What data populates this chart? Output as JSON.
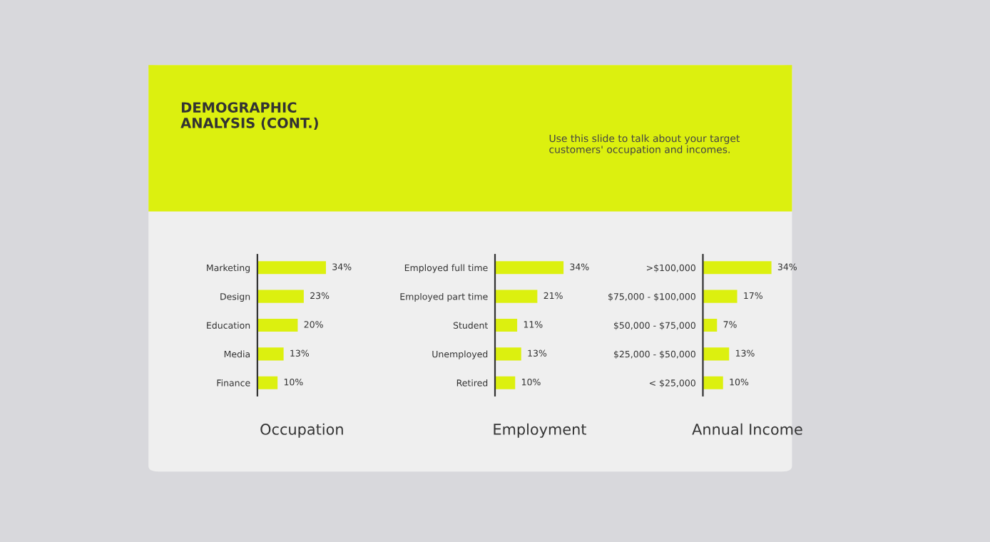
{
  "chart_data": [
    {
      "type": "other",
      "title": "DEMOGRAPHIC\nANALYSIS (CONT.)",
      "subtitle": "Use this slide to talk about your target\ncustomers' occupation and incomes."
    },
    {
      "type": "bar",
      "orientation": "horizontal",
      "xlabel": "Occupation",
      "color": "#dcf00f",
      "categories": [
        "Marketing",
        "Design",
        "Education",
        "Media",
        "Finance"
      ],
      "values": [
        34,
        23,
        20,
        13,
        10
      ],
      "value_labels": [
        "34%",
        "23%",
        "20%",
        "13%",
        "10%"
      ]
    },
    {
      "type": "bar",
      "orientation": "horizontal",
      "xlabel": "Employment",
      "color": "#dcf00f",
      "categories": [
        "Employed full time",
        "Employed part time",
        "Student",
        "Unemployed",
        "Retired"
      ],
      "values": [
        34,
        21,
        11,
        13,
        10
      ],
      "value_labels": [
        "34%",
        "21%",
        "11%",
        "13%",
        "10%"
      ]
    },
    {
      "type": "bar",
      "orientation": "horizontal",
      "xlabel": "Annual Income",
      "color": "#dcf00f",
      "categories": [
        ">$100,000",
        "$75,000 - $100,000",
        "$50,000 - $75,000",
        "$25,000 - $50,000",
        "< $25,000"
      ],
      "values": [
        34,
        17,
        7,
        13,
        10
      ],
      "value_labels": [
        "34%",
        "17%",
        "7%",
        "13%",
        "10%"
      ]
    }
  ]
}
